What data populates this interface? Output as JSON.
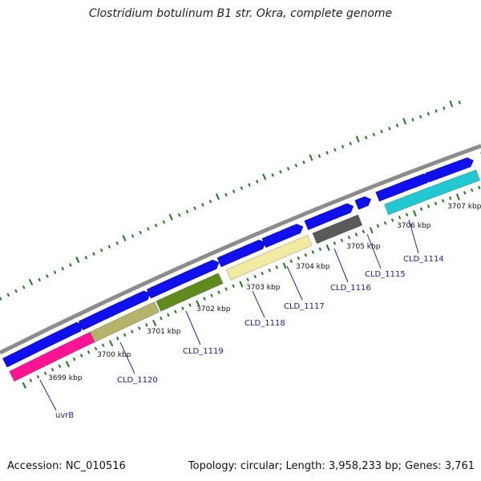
{
  "title": "Clostridium botulinum B1 str. Okra, complete genome",
  "accession_label": "Accession: NC_010516",
  "summary_label": "Topology: circular; Length: 3,958,233 bp; Genes: 3,761",
  "colors": {
    "backbone": "#8c8c8c",
    "cds": "#1010ee",
    "tick_major": "#1a7a1a",
    "tick_minor": "#1a7a1a",
    "label_line": "#2020cc"
  },
  "kbp_ticks": [
    "3699 kbp",
    "3700 kbp",
    "3701 kbp",
    "3702 kbp",
    "3703 kbp",
    "3704 kbp",
    "3705 kbp",
    "3706 kbp",
    "3707 kbp"
  ],
  "genes": [
    {
      "name": "uvrB",
      "color": "#ff1493"
    },
    {
      "name": "CLD_1120",
      "color": "#b5b36a"
    },
    {
      "name": "CLD_1119",
      "color": "#5f8a1c"
    },
    {
      "name": "CLD_1118",
      "color": "#f2eaa0"
    },
    {
      "name": "CLD_1117",
      "color": "#f2eaa0"
    },
    {
      "name": "CLD_1116",
      "color": "#5a5a5a"
    },
    {
      "name": "CLD_1115",
      "color": ""
    },
    {
      "name": "CLD_1114",
      "color": "#22c8d0"
    }
  ]
}
